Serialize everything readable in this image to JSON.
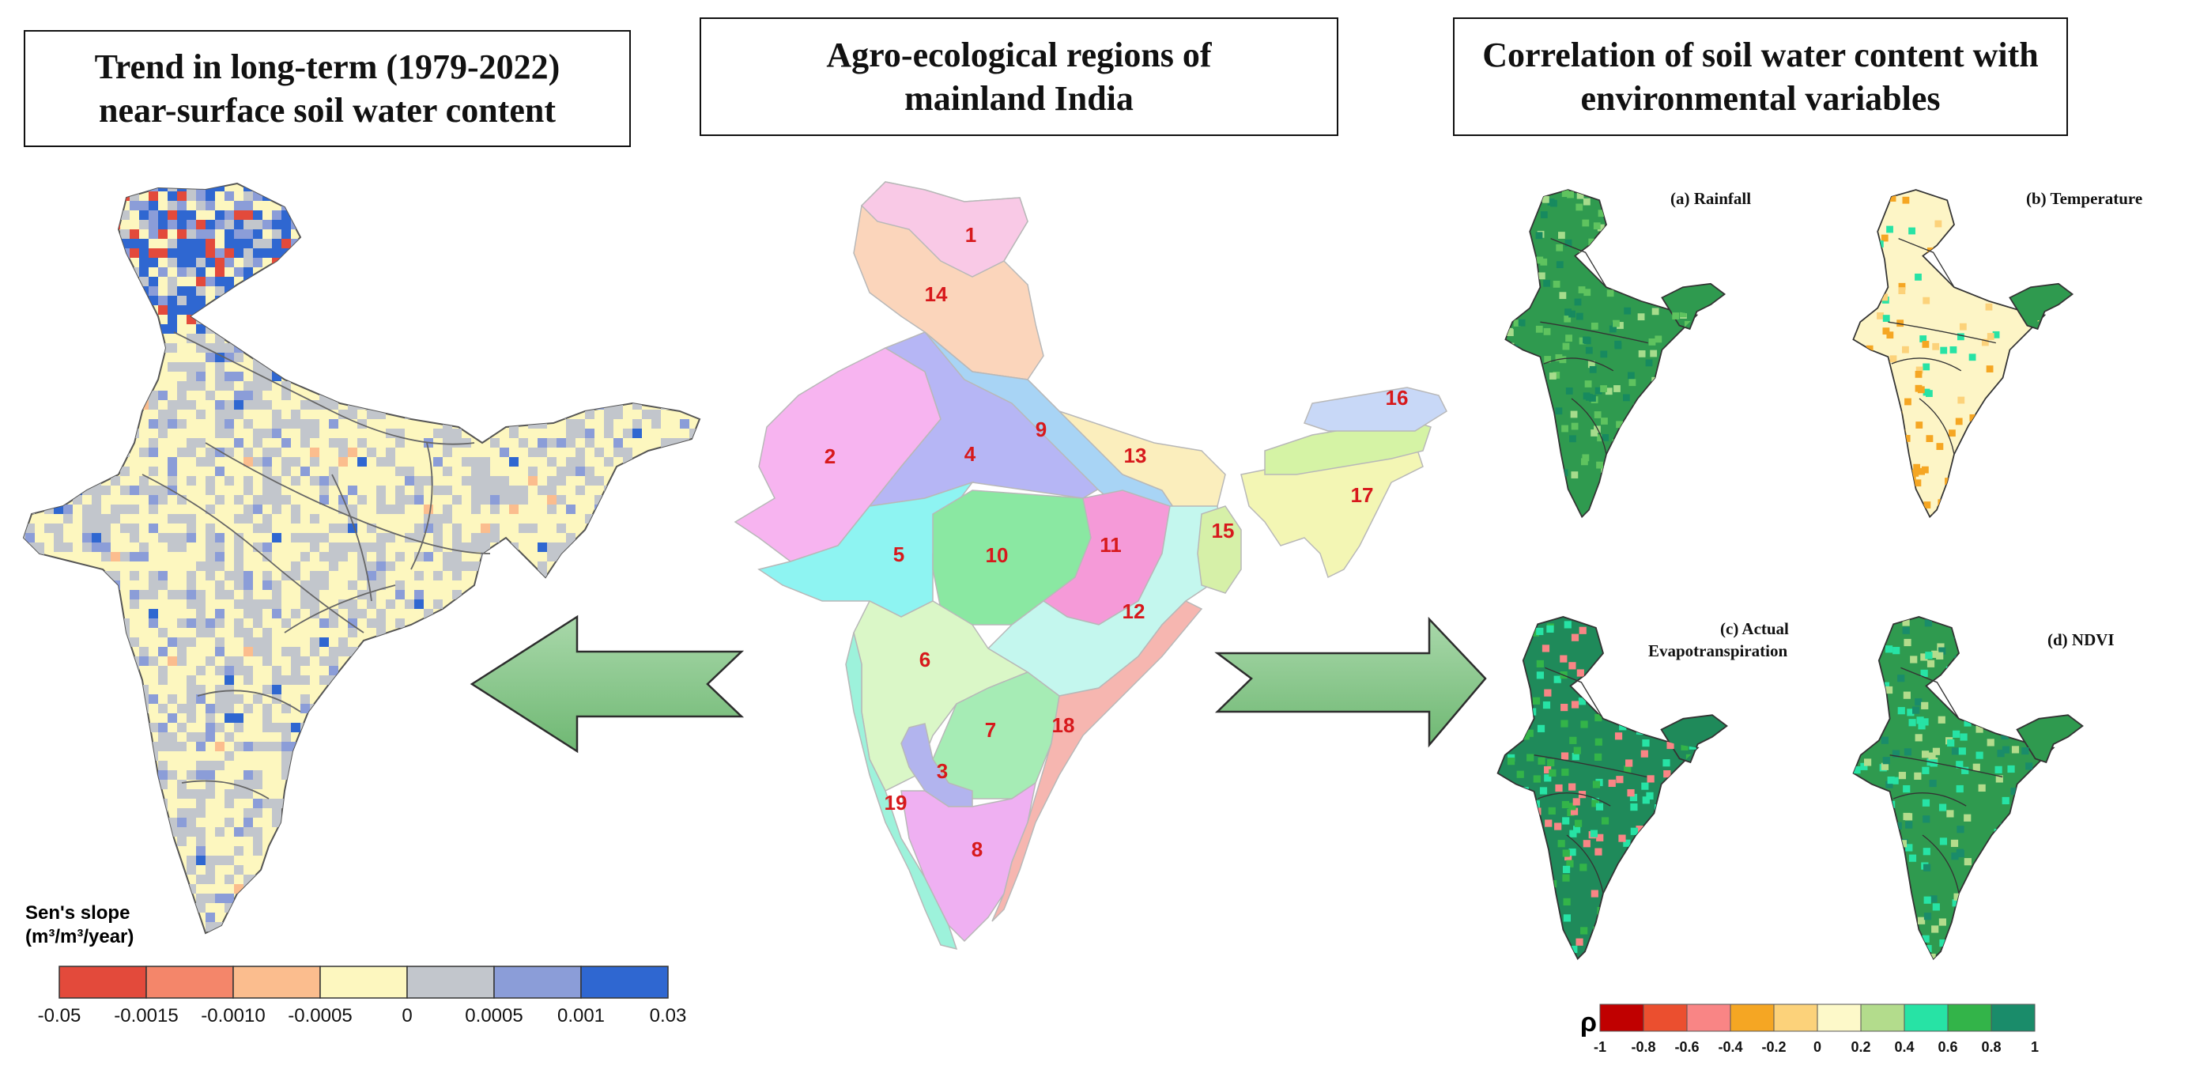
{
  "titles": {
    "left": [
      "Trend in long-term (1979-2022)",
      "near-surface soil water content"
    ],
    "middle": [
      "Agro-ecological regions of",
      "mainland India"
    ],
    "right": [
      "Correlation of soil water content with",
      "environmental variables"
    ]
  },
  "left_legend": {
    "title_line1": "Sen's slope",
    "title_line2": "(m³/m³/year)",
    "colors": [
      "#e34a3b",
      "#f4866a",
      "#fbbd8e",
      "#fdf7bf",
      "#c2c6cc",
      "#8b9dd8",
      "#2f67d1"
    ],
    "ticks": [
      "-0.05",
      "-0.0015",
      "-0.0010",
      "-0.0005",
      "0",
      "0.0005",
      "0.001",
      "0.03"
    ]
  },
  "regions": [
    "1",
    "2",
    "3",
    "4",
    "5",
    "6",
    "7",
    "8",
    "9",
    "10",
    "11",
    "12",
    "13",
    "14",
    "15",
    "16",
    "17",
    "18",
    "19"
  ],
  "panels": {
    "a": "(a) Rainfall",
    "b": "(b) Temperature",
    "c_line1": "(c) Actual",
    "c_line2": "Evapotranspiration",
    "d": "(d) NDVI"
  },
  "right_legend": {
    "symbol": "ρ",
    "colors": [
      "#c00000",
      "#eb4f2f",
      "#f98585",
      "#f5a623",
      "#fcd27a",
      "#fdf9c9",
      "#b3dc8c",
      "#27e3a5",
      "#33b449",
      "#1a8c6a"
    ],
    "ticks": [
      "-1",
      "-0.8",
      "-0.6",
      "-0.4",
      "-0.2",
      "0",
      "0.2",
      "0.4",
      "0.6",
      "0.8",
      "1"
    ]
  },
  "colors": {
    "arrow_fill": "#8cc98e",
    "arrow_stroke": "#2d2d2d",
    "region_label": "#d7191c"
  }
}
